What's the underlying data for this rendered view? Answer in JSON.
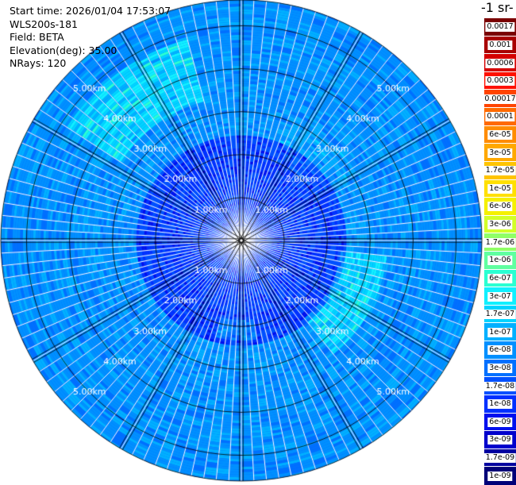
{
  "info": {
    "start_time": "Start time: 2026/01/04 17:53:07",
    "instrument": "WLS200s-181",
    "field": "Field: BETA",
    "elevation": "Elevation(deg): 35.00",
    "nrays": "NRays: 120"
  },
  "chart_data": {
    "type": "heatmap",
    "projection": "polar PPI",
    "nrays": 120,
    "range_rings_km": [
      1,
      2,
      3,
      4,
      5
    ],
    "range_labels": [
      "1.00km",
      "2.00km",
      "3.00km",
      "4.00km",
      "5.00km"
    ],
    "colorbar": {
      "title": "-1 sr-",
      "labels": [
        "0.0017",
        "0.001",
        "0.0006",
        "0.0003",
        "0.00017",
        "0.0001",
        "6e-05",
        "3e-05",
        "1.7e-05",
        "1e-05",
        "6e-06",
        "3e-06",
        "1.7e-06",
        "1e-06",
        "6e-07",
        "3e-07",
        "1.7e-07",
        "1e-07",
        "6e-08",
        "3e-08",
        "1.7e-08",
        "1e-08",
        "6e-09",
        "3e-09",
        "1.7e-09",
        "1e-09"
      ],
      "colors": [
        "#7a0000",
        "#a80000",
        "#d40000",
        "#ff1000",
        "#ff4400",
        "#ff6a00",
        "#ff8c00",
        "#ffa800",
        "#ffc400",
        "#ffe000",
        "#f5f000",
        "#d2ff28",
        "#90ff66",
        "#60ffa0",
        "#2affd2",
        "#10f0ff",
        "#00d4ff",
        "#00b0ff",
        "#0090ff",
        "#0070ff",
        "#0050ff",
        "#0030ff",
        "#0010ee",
        "#0000cc",
        "#0000a0",
        "#000078"
      ]
    }
  }
}
